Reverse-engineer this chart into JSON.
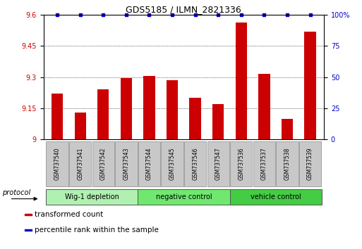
{
  "title": "GDS5185 / ILMN_2821336",
  "samples": [
    "GSM737540",
    "GSM737541",
    "GSM737542",
    "GSM737543",
    "GSM737544",
    "GSM737545",
    "GSM737546",
    "GSM737547",
    "GSM737536",
    "GSM737537",
    "GSM737538",
    "GSM737539"
  ],
  "transformed_counts": [
    9.22,
    9.13,
    9.24,
    9.295,
    9.305,
    9.285,
    9.2,
    9.17,
    9.565,
    9.315,
    9.1,
    9.52
  ],
  "percentile_ranks": [
    100,
    100,
    100,
    100,
    100,
    100,
    100,
    100,
    100,
    100,
    100,
    100
  ],
  "ylim_left": [
    9.0,
    9.6
  ],
  "ylim_right": [
    0,
    100
  ],
  "yticks_left": [
    9.0,
    9.15,
    9.3,
    9.45,
    9.6
  ],
  "ytick_labels_left": [
    "9",
    "9.15",
    "9.3",
    "9.45",
    "9.6"
  ],
  "yticks_right": [
    0,
    25,
    50,
    75,
    100
  ],
  "ytick_labels_right": [
    "0",
    "25",
    "50",
    "75",
    "100%"
  ],
  "groups": [
    {
      "label": "Wig-1 depletion",
      "indices": [
        0,
        1,
        2,
        3
      ],
      "color": "#b0f0b0"
    },
    {
      "label": "negative control",
      "indices": [
        4,
        5,
        6,
        7
      ],
      "color": "#70e870"
    },
    {
      "label": "vehicle control",
      "indices": [
        8,
        9,
        10,
        11
      ],
      "color": "#44cc44"
    }
  ],
  "bar_color": "#cc0000",
  "dot_color": "#0000cc",
  "bar_width": 0.5,
  "baseline": 9.0,
  "legend_items": [
    {
      "color": "#cc0000",
      "label": "transformed count"
    },
    {
      "color": "#0000cc",
      "label": "percentile rank within the sample"
    }
  ],
  "tick_label_color_left": "#cc0000",
  "tick_label_color_right": "#0000cc",
  "protocol_label": "protocol",
  "sample_box_color": "#c8c8c8"
}
